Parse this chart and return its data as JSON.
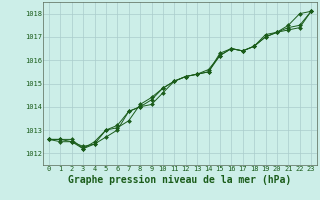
{
  "title": "Graphe pression niveau de la mer (hPa)",
  "bg_color": "#cceee8",
  "grid_color": "#aacccc",
  "line_color": "#1a5c1a",
  "marker_color": "#1a5c1a",
  "xlim": [
    -0.5,
    23.5
  ],
  "ylim": [
    1011.5,
    1018.5
  ],
  "yticks": [
    1012,
    1013,
    1014,
    1015,
    1016,
    1017,
    1018
  ],
  "xticks": [
    0,
    1,
    2,
    3,
    4,
    5,
    6,
    7,
    8,
    9,
    10,
    11,
    12,
    13,
    14,
    15,
    16,
    17,
    18,
    19,
    20,
    21,
    22,
    23
  ],
  "series": [
    [
      1012.6,
      1012.6,
      1012.5,
      1012.3,
      1012.4,
      1012.7,
      1013.0,
      1013.8,
      1014.0,
      1014.1,
      1014.6,
      1015.1,
      1015.3,
      1015.4,
      1015.5,
      1016.3,
      1016.5,
      1016.4,
      1016.6,
      1017.1,
      1017.2,
      1017.5,
      1018.0,
      1018.1
    ],
    [
      1012.6,
      1012.5,
      1012.5,
      1012.2,
      1012.5,
      1013.0,
      1013.1,
      1013.4,
      1014.1,
      1014.4,
      1014.8,
      1015.1,
      1015.3,
      1015.4,
      1015.5,
      1016.2,
      1016.5,
      1016.4,
      1016.6,
      1017.0,
      1017.2,
      1017.4,
      1017.5,
      1018.1
    ],
    [
      1012.6,
      1012.6,
      1012.6,
      1012.2,
      1012.4,
      1013.0,
      1013.2,
      1013.8,
      1014.0,
      1014.3,
      1014.8,
      1015.1,
      1015.3,
      1015.4,
      1015.6,
      1016.2,
      1016.5,
      1016.4,
      1016.6,
      1017.0,
      1017.2,
      1017.3,
      1017.4,
      1018.1
    ]
  ],
  "xlabel_fontsize": 7,
  "tick_fontsize": 5,
  "linewidth": 0.7,
  "markersize": 2.0
}
